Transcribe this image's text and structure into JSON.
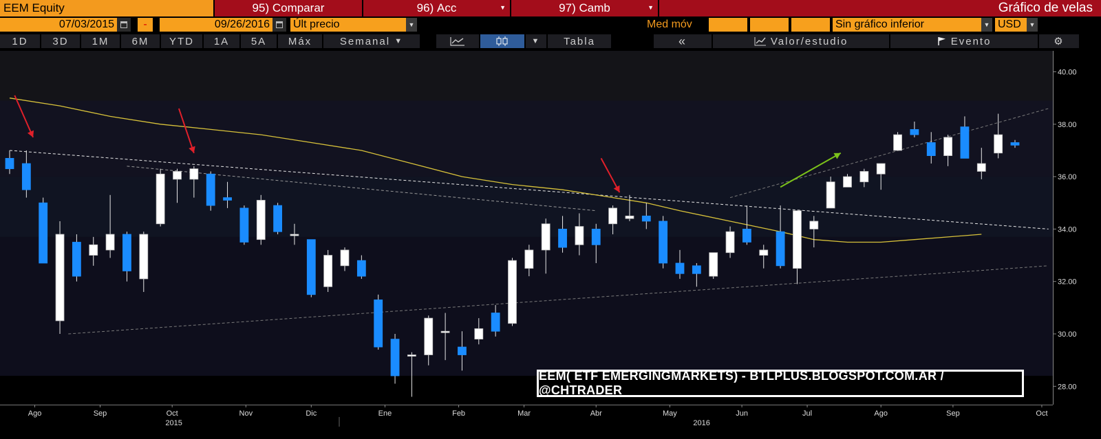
{
  "header": {
    "ticker": "EEM Equity",
    "compare": {
      "num": "95)",
      "label": "Comparar"
    },
    "actions": {
      "num": "96)",
      "label": "Acc"
    },
    "change": {
      "num": "97)",
      "label": "Camb"
    },
    "chart_title": "Gráfico de velas"
  },
  "controls": {
    "start_date": "07/03/2015",
    "dash": "-",
    "end_date": "09/26/2016",
    "price_field": "Últ precio",
    "moving_avg": "Med móv",
    "lower_chart": "Sin gráfico inferior",
    "currency": "USD"
  },
  "toolbar": {
    "ranges": [
      "1D",
      "3D",
      "1M",
      "6M",
      "YTD",
      "1A",
      "5A",
      "Máx"
    ],
    "period": "Semanal",
    "table": "Tabla",
    "back": "«",
    "study": "Valor/estudio",
    "event": "Evento"
  },
  "watermark": "EEM( ETF EMERGINGMARKETS) - BTLPLUS.BLOGSPOT.COM.AR / @CHTRADER",
  "colors": {
    "up": "#ffffff",
    "down": "#1a8cff",
    "ma": "#d8c23a",
    "orange": "#f39a1e",
    "red_bar": "#a30d1b",
    "arrow_red": "#e0202a",
    "arrow_green": "#7cc21a"
  },
  "chart_data": {
    "type": "candlestick",
    "title": "Gráfico de velas",
    "ylim": [
      27.3,
      40.8
    ],
    "yticks": [
      28.0,
      30.0,
      32.0,
      34.0,
      36.0,
      38.0,
      40.0
    ],
    "xlim": [
      0,
      62
    ],
    "months": [
      {
        "label": "Ago",
        "x": 1.5
      },
      {
        "label": "Sep",
        "x": 5.4
      },
      {
        "label": "Oct",
        "x": 9.7
      },
      {
        "label": "Nov",
        "x": 14.1
      },
      {
        "label": "Dic",
        "x": 18.0
      },
      {
        "label": "Ene",
        "x": 22.4
      },
      {
        "label": "Feb",
        "x": 26.8
      },
      {
        "label": "Mar",
        "x": 30.7
      },
      {
        "label": "Abr",
        "x": 35.0
      },
      {
        "label": "May",
        "x": 39.4
      },
      {
        "label": "Jun",
        "x": 43.7
      },
      {
        "label": "Jul",
        "x": 47.6
      },
      {
        "label": "Ago",
        "x": 52.0
      },
      {
        "label": "Sep",
        "x": 56.3
      },
      {
        "label": "Oct",
        "x": 61.6
      }
    ],
    "years": [
      {
        "label": "2015",
        "x": 9.8
      },
      {
        "label": "2016",
        "x": 41.3
      }
    ],
    "candles": [
      {
        "o": 36.7,
        "h": 37.0,
        "l": 36.1,
        "c": 36.3
      },
      {
        "o": 36.5,
        "h": 37.0,
        "l": 35.2,
        "c": 35.5
      },
      {
        "o": 35.0,
        "h": 35.2,
        "l": 32.7,
        "c": 32.7
      },
      {
        "o": 30.5,
        "h": 34.3,
        "l": 30.0,
        "c": 33.8
      },
      {
        "o": 33.5,
        "h": 33.8,
        "l": 32.0,
        "c": 32.2
      },
      {
        "o": 33.0,
        "h": 33.7,
        "l": 32.6,
        "c": 33.4
      },
      {
        "o": 33.2,
        "h": 35.3,
        "l": 32.9,
        "c": 33.8
      },
      {
        "o": 33.8,
        "h": 33.9,
        "l": 32.0,
        "c": 32.4
      },
      {
        "o": 32.1,
        "h": 33.9,
        "l": 31.6,
        "c": 33.8
      },
      {
        "o": 34.2,
        "h": 36.3,
        "l": 34.1,
        "c": 36.1
      },
      {
        "o": 35.9,
        "h": 36.3,
        "l": 35.0,
        "c": 36.2
      },
      {
        "o": 35.9,
        "h": 36.4,
        "l": 35.2,
        "c": 36.3
      },
      {
        "o": 36.1,
        "h": 36.2,
        "l": 34.7,
        "c": 34.9
      },
      {
        "o": 35.2,
        "h": 35.8,
        "l": 34.8,
        "c": 35.1
      },
      {
        "o": 34.8,
        "h": 34.9,
        "l": 33.4,
        "c": 33.5
      },
      {
        "o": 33.6,
        "h": 35.3,
        "l": 33.4,
        "c": 35.1
      },
      {
        "o": 34.9,
        "h": 35.0,
        "l": 33.8,
        "c": 33.9
      },
      {
        "o": 33.8,
        "h": 34.2,
        "l": 33.4,
        "c": 33.8
      },
      {
        "o": 33.6,
        "h": 33.6,
        "l": 31.4,
        "c": 31.5
      },
      {
        "o": 31.8,
        "h": 33.2,
        "l": 31.6,
        "c": 33.0
      },
      {
        "o": 32.6,
        "h": 33.3,
        "l": 32.4,
        "c": 33.2
      },
      {
        "o": 32.8,
        "h": 33.0,
        "l": 32.1,
        "c": 32.2
      },
      {
        "o": 31.3,
        "h": 31.5,
        "l": 29.4,
        "c": 29.5
      },
      {
        "o": 29.8,
        "h": 30.0,
        "l": 28.1,
        "c": 28.4
      },
      {
        "o": 29.2,
        "h": 29.3,
        "l": 27.6,
        "c": 29.2
      },
      {
        "o": 29.2,
        "h": 30.7,
        "l": 28.8,
        "c": 30.6
      },
      {
        "o": 30.1,
        "h": 30.8,
        "l": 29.0,
        "c": 30.1
      },
      {
        "o": 29.5,
        "h": 30.1,
        "l": 28.6,
        "c": 29.2
      },
      {
        "o": 29.8,
        "h": 30.6,
        "l": 29.6,
        "c": 30.2
      },
      {
        "o": 30.8,
        "h": 31.1,
        "l": 29.9,
        "c": 30.1
      },
      {
        "o": 30.4,
        "h": 32.9,
        "l": 30.3,
        "c": 32.8
      },
      {
        "o": 32.5,
        "h": 33.4,
        "l": 32.2,
        "c": 33.2
      },
      {
        "o": 33.2,
        "h": 34.4,
        "l": 32.3,
        "c": 34.2
      },
      {
        "o": 34.0,
        "h": 34.5,
        "l": 33.1,
        "c": 33.3
      },
      {
        "o": 33.4,
        "h": 34.6,
        "l": 33.0,
        "c": 34.1
      },
      {
        "o": 34.0,
        "h": 34.2,
        "l": 32.7,
        "c": 33.4
      },
      {
        "o": 34.2,
        "h": 34.9,
        "l": 33.8,
        "c": 34.8
      },
      {
        "o": 34.4,
        "h": 35.3,
        "l": 34.3,
        "c": 34.5
      },
      {
        "o": 34.5,
        "h": 35.0,
        "l": 34.0,
        "c": 34.3
      },
      {
        "o": 34.3,
        "h": 34.5,
        "l": 32.5,
        "c": 32.7
      },
      {
        "o": 32.7,
        "h": 33.2,
        "l": 32.1,
        "c": 32.3
      },
      {
        "o": 32.6,
        "h": 32.7,
        "l": 31.8,
        "c": 32.3
      },
      {
        "o": 32.2,
        "h": 33.1,
        "l": 32.1,
        "c": 33.1
      },
      {
        "o": 33.1,
        "h": 34.1,
        "l": 32.9,
        "c": 33.9
      },
      {
        "o": 34.0,
        "h": 34.9,
        "l": 33.4,
        "c": 33.5
      },
      {
        "o": 33.0,
        "h": 33.4,
        "l": 32.5,
        "c": 33.2
      },
      {
        "o": 33.9,
        "h": 34.9,
        "l": 32.5,
        "c": 32.6
      },
      {
        "o": 32.5,
        "h": 34.7,
        "l": 31.9,
        "c": 34.7
      },
      {
        "o": 34.0,
        "h": 34.5,
        "l": 33.3,
        "c": 34.3
      },
      {
        "o": 34.8,
        "h": 36.0,
        "l": 34.8,
        "c": 35.8
      },
      {
        "o": 35.6,
        "h": 36.1,
        "l": 35.6,
        "c": 36.0
      },
      {
        "o": 35.8,
        "h": 36.3,
        "l": 35.6,
        "c": 36.2
      },
      {
        "o": 36.1,
        "h": 36.5,
        "l": 35.5,
        "c": 36.5
      },
      {
        "o": 37.0,
        "h": 37.7,
        "l": 37.0,
        "c": 37.6
      },
      {
        "o": 37.8,
        "h": 38.1,
        "l": 37.5,
        "c": 37.6
      },
      {
        "o": 37.3,
        "h": 37.7,
        "l": 36.5,
        "c": 36.8
      },
      {
        "o": 36.8,
        "h": 37.6,
        "l": 36.4,
        "c": 37.5
      },
      {
        "o": 37.9,
        "h": 38.3,
        "l": 36.7,
        "c": 36.7
      },
      {
        "o": 36.2,
        "h": 37.1,
        "l": 35.9,
        "c": 36.5
      },
      {
        "o": 36.9,
        "h": 38.4,
        "l": 36.7,
        "c": 37.6
      },
      {
        "o": 37.3,
        "h": 37.4,
        "l": 37.1,
        "c": 37.2
      }
    ],
    "moving_average": [
      [
        0,
        39.0
      ],
      [
        3,
        38.7
      ],
      [
        6,
        38.3
      ],
      [
        9,
        38.0
      ],
      [
        12,
        37.8
      ],
      [
        15,
        37.6
      ],
      [
        18,
        37.3
      ],
      [
        21,
        37.0
      ],
      [
        24,
        36.5
      ],
      [
        27,
        36.0
      ],
      [
        30,
        35.7
      ],
      [
        33,
        35.5
      ],
      [
        36,
        35.2
      ],
      [
        38,
        35.0
      ],
      [
        40,
        34.7
      ],
      [
        43,
        34.3
      ],
      [
        46,
        33.9
      ],
      [
        48,
        33.6
      ],
      [
        50,
        33.5
      ],
      [
        52,
        33.5
      ],
      [
        54,
        33.6
      ],
      [
        56,
        33.7
      ],
      [
        58,
        33.8
      ]
    ],
    "trendlines": [
      {
        "points": [
          [
            0,
            37.0
          ],
          [
            62,
            34.0
          ]
        ],
        "color": "#e8e8e8",
        "style": "dashed"
      },
      {
        "points": [
          [
            7,
            36.4
          ],
          [
            35,
            34.7
          ]
        ],
        "color": "#9a9a9a",
        "style": "dashed"
      },
      {
        "points": [
          [
            3.5,
            30.0
          ],
          [
            62,
            32.6
          ]
        ],
        "color": "#7a7a7a",
        "style": "dashed"
      },
      {
        "points": [
          [
            43,
            35.2
          ],
          [
            62,
            38.6
          ]
        ],
        "color": "#7a7a7a",
        "style": "dashed"
      }
    ],
    "arrows": [
      {
        "from": [
          0.3,
          39.1
        ],
        "to": [
          1.4,
          37.5
        ],
        "color": "red"
      },
      {
        "from": [
          10.1,
          38.6
        ],
        "to": [
          11.0,
          36.9
        ],
        "color": "red"
      },
      {
        "from": [
          35.3,
          36.7
        ],
        "to": [
          36.4,
          35.4
        ],
        "color": "red"
      },
      {
        "from": [
          46.0,
          35.6
        ],
        "to": [
          49.6,
          36.9
        ],
        "color": "green"
      }
    ]
  }
}
